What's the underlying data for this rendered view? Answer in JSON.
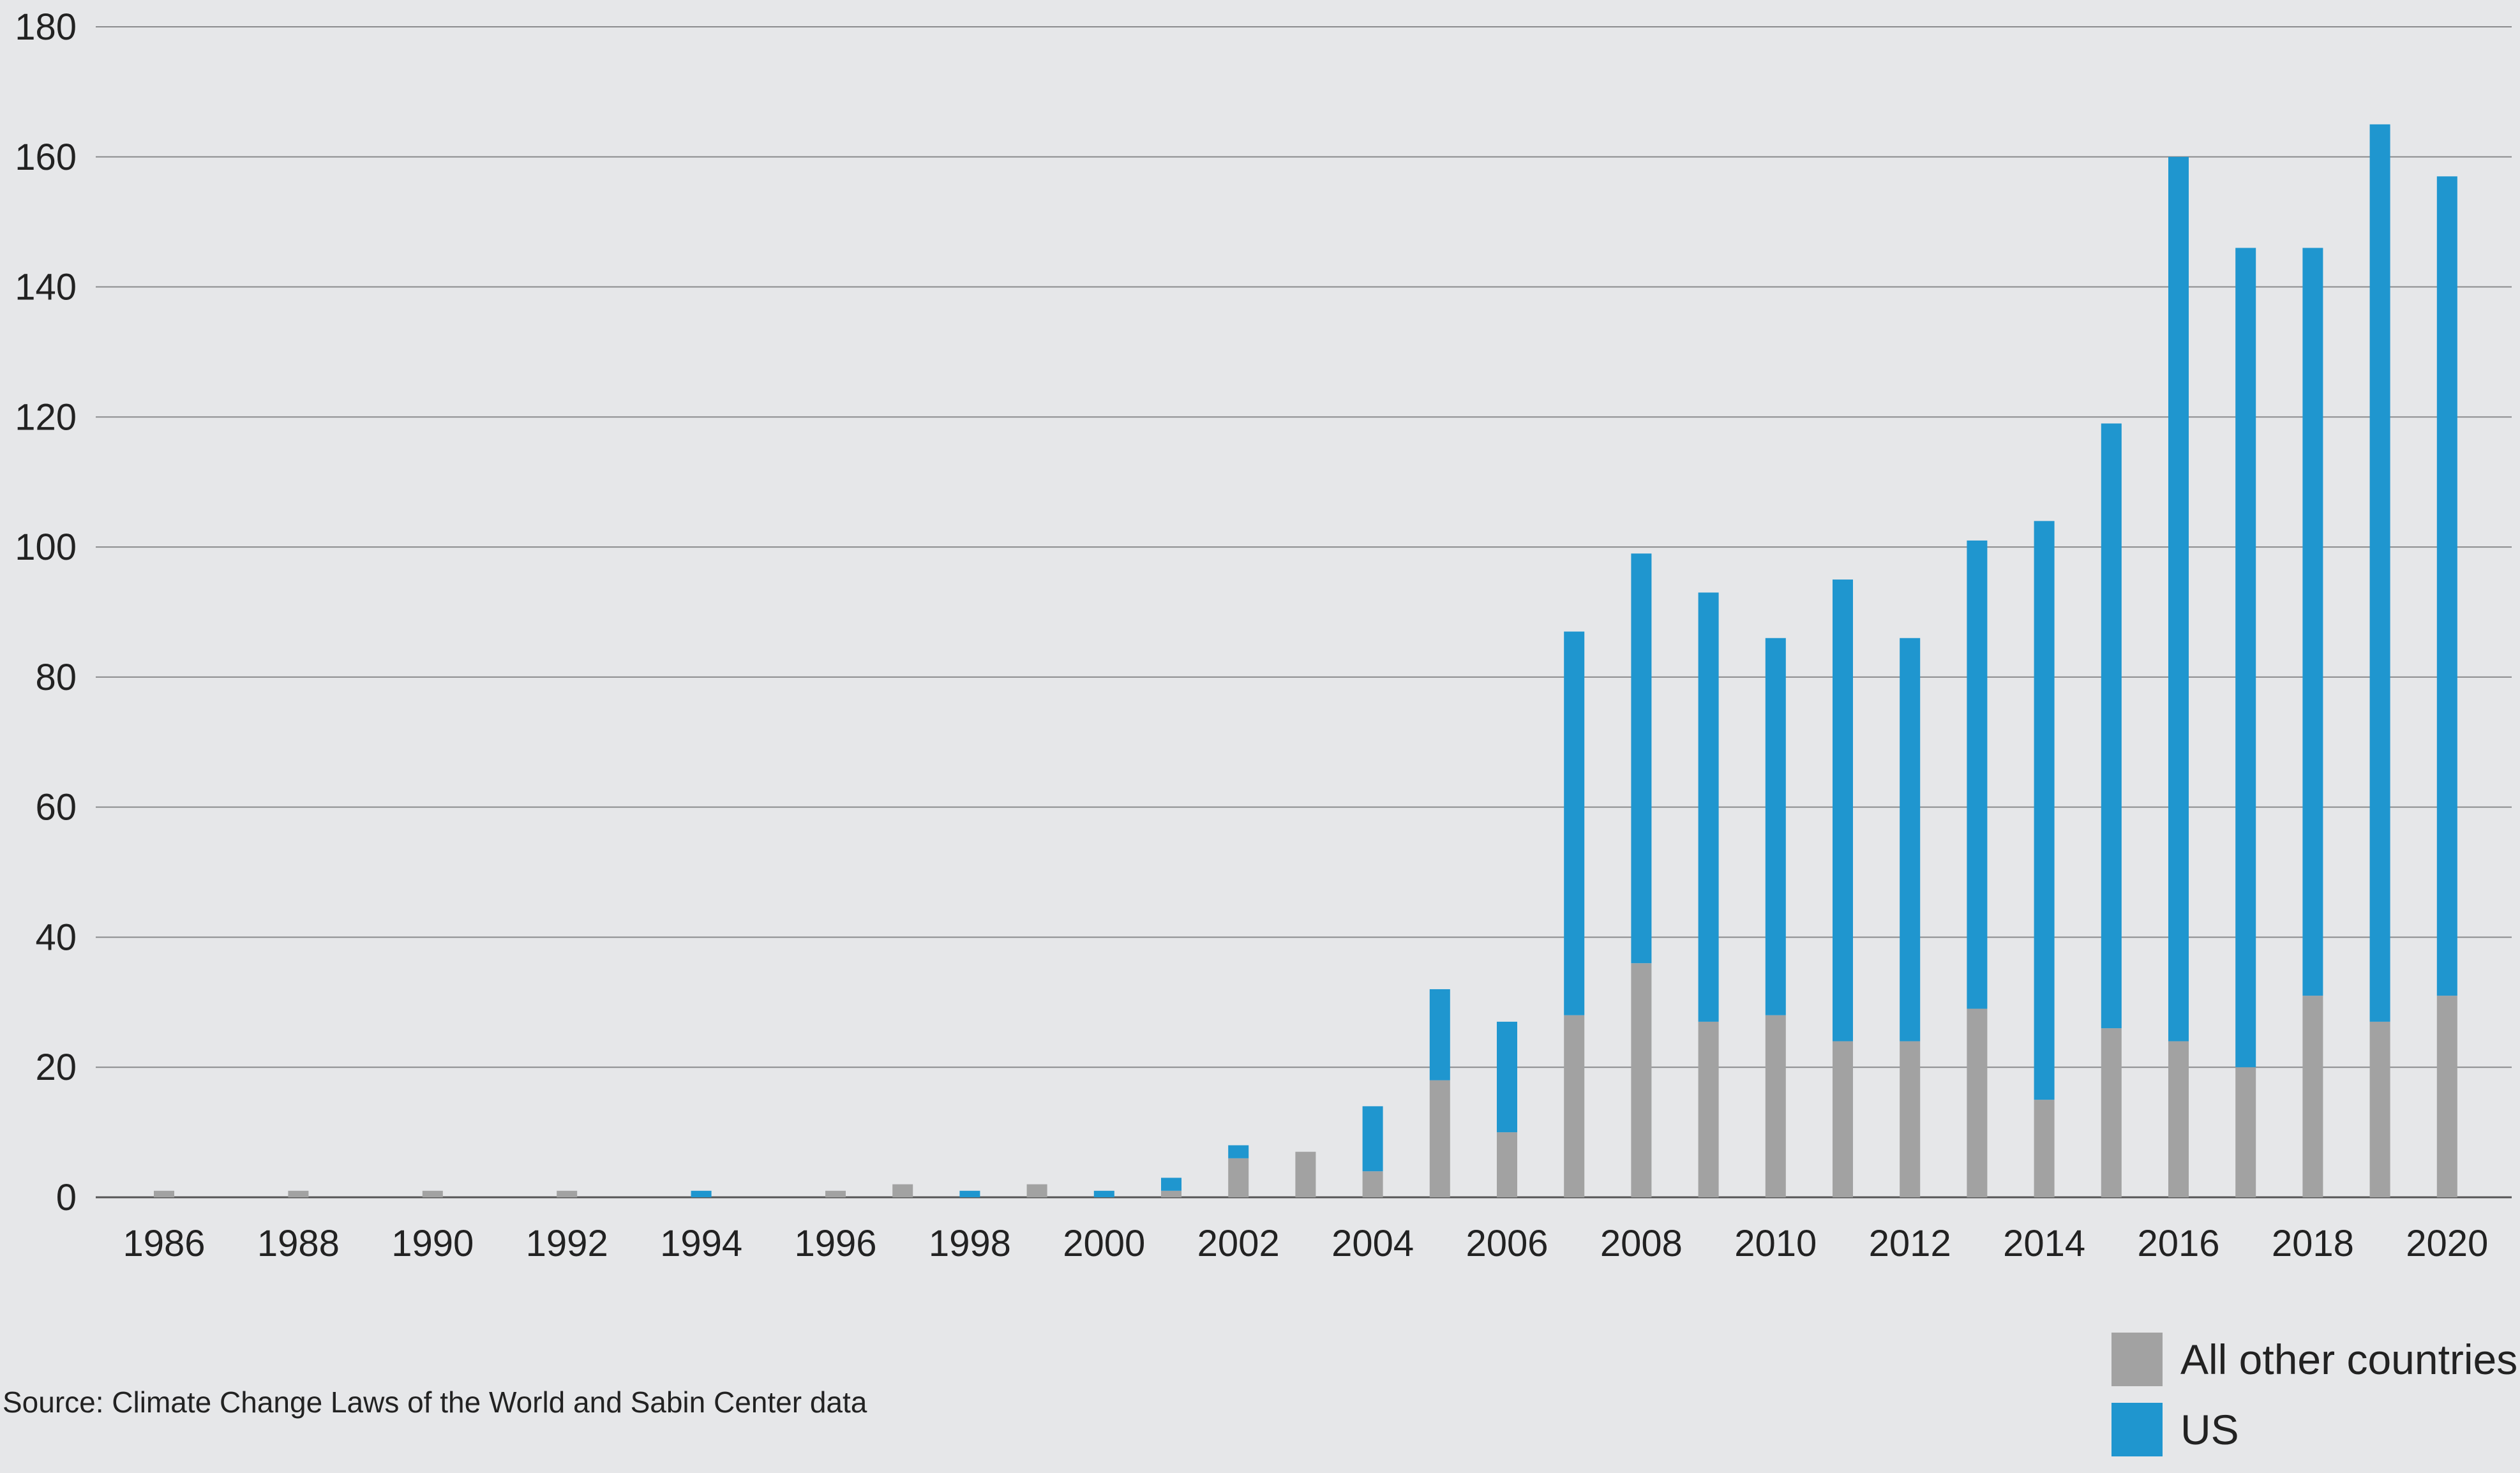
{
  "chart_data": {
    "type": "bar",
    "stacked": true,
    "title": "",
    "xlabel": "",
    "ylabel": "",
    "ylim": [
      0,
      180
    ],
    "yticks": [
      0,
      20,
      40,
      60,
      80,
      100,
      120,
      140,
      160,
      180
    ],
    "grid": true,
    "legend_position": "bottom-right",
    "categories": [
      "1986",
      "1987",
      "1988",
      "1989",
      "1990",
      "1991",
      "1992",
      "1993",
      "1994",
      "1995",
      "1996",
      "1997",
      "1998",
      "1999",
      "2000",
      "2001",
      "2002",
      "2003",
      "2004",
      "2005",
      "2006",
      "2007",
      "2008",
      "2009",
      "2010",
      "2011",
      "2012",
      "2013",
      "2014",
      "2015",
      "2016",
      "2017",
      "2018",
      "2019",
      "2020"
    ],
    "x_tick_labels": [
      "1986",
      "1988",
      "1990",
      "1992",
      "1994",
      "1996",
      "1998",
      "2000",
      "2002",
      "2004",
      "2006",
      "2008",
      "2010",
      "2012",
      "2014",
      "2016",
      "2018",
      "2020"
    ],
    "series": [
      {
        "name": "All other countries",
        "color": "#a2a2a2",
        "values": [
          1,
          0,
          1,
          0,
          1,
          0,
          1,
          0,
          0,
          0,
          1,
          2,
          0,
          2,
          0,
          1,
          6,
          7,
          4,
          18,
          10,
          28,
          36,
          27,
          28,
          24,
          24,
          29,
          15,
          26,
          24,
          20,
          31,
          27,
          31
        ]
      },
      {
        "name": "US",
        "color": "#1f96cf",
        "values": [
          0,
          0,
          0,
          0,
          0,
          0,
          0,
          0,
          1,
          0,
          0,
          0,
          1,
          0,
          1,
          2,
          2,
          0,
          10,
          14,
          17,
          59,
          63,
          66,
          58,
          71,
          62,
          72,
          89,
          93,
          136,
          126,
          115,
          138,
          126
        ]
      }
    ]
  },
  "source": "Source: Climate Change Laws of the World and Sabin Center data",
  "colors": {
    "background": "#e6e7e9",
    "gridline": "#8a8b8d",
    "other": "#a2a2a2",
    "us": "#1f96cf"
  }
}
